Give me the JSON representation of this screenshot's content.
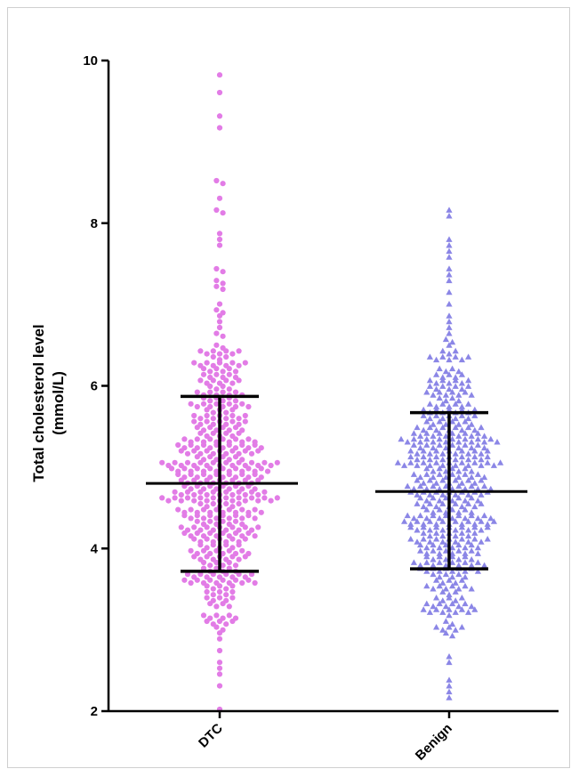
{
  "chart_data": {
    "type": "scatter",
    "subtype": "dot-plot-with-mean-and-sd",
    "ylabel_line1": "Total cholesterol level",
    "ylabel_line2": "(mmol/L)",
    "ylim": [
      2,
      10
    ],
    "yticks": [
      "2",
      "4",
      "6",
      "8",
      "10"
    ],
    "categories": [
      "DTC",
      "Benign"
    ],
    "grid": false,
    "series": [
      {
        "category": "DTC",
        "marker": "circle",
        "color": "#e27ce6",
        "mean": 4.8,
        "sd_upper": 5.87,
        "sd_lower": 3.72,
        "min": 2.0,
        "max": 9.78,
        "outlier_values": [
          9.78,
          9.6,
          9.28,
          9.15,
          8.5,
          8.47,
          8.3,
          8.18,
          8.12,
          7.85,
          7.8,
          7.72,
          7.42,
          7.4,
          7.28,
          7.25,
          7.2,
          7.18,
          7.02,
          6.9,
          6.88,
          6.85,
          6.8,
          6.72,
          6.65,
          6.6,
          2.9,
          2.75,
          2.6,
          2.5,
          2.45,
          2.3,
          2.0
        ],
        "bulk_range": [
          2.9,
          6.5
        ]
      },
      {
        "category": "Benign",
        "marker": "triangle",
        "color": "#8b86e6",
        "mean": 4.7,
        "sd_upper": 5.67,
        "sd_lower": 3.75,
        "min": 2.18,
        "max": 8.15,
        "outlier_values": [
          8.15,
          8.05,
          7.8,
          7.72,
          7.65,
          7.55,
          7.45,
          7.32,
          7.25,
          7.1,
          6.98,
          6.85,
          6.78,
          6.7,
          6.62,
          2.65,
          2.55,
          2.4,
          2.3,
          2.22,
          2.18
        ],
        "bulk_range": [
          2.9,
          6.6
        ]
      }
    ]
  }
}
